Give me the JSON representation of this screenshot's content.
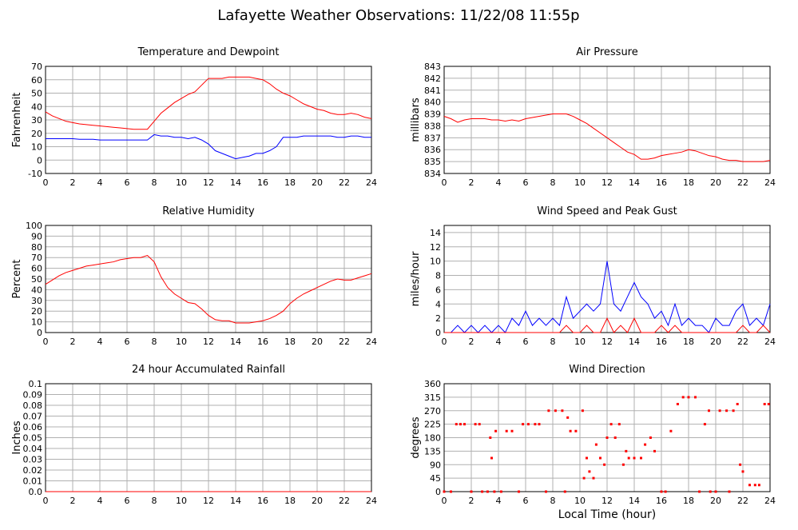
{
  "title": "Lafayette Weather Observations: 11/22/08 11:55p",
  "xlabel": "Local Time (hour)",
  "chart_data": [
    {
      "type": "line",
      "title": "Temperature and Dewpoint",
      "ylabel": "Fahrenheit",
      "x": [
        0,
        0.5,
        1,
        1.5,
        2,
        2.5,
        3,
        3.5,
        4,
        4.5,
        5,
        5.5,
        6,
        6.5,
        7,
        7.5,
        8,
        8.5,
        9,
        9.5,
        10,
        10.5,
        11,
        11.5,
        12,
        12.5,
        13,
        13.5,
        14,
        14.5,
        15,
        15.5,
        16,
        16.5,
        17,
        17.5,
        18,
        18.5,
        19,
        19.5,
        20,
        20.5,
        21,
        21.5,
        22,
        22.5,
        23,
        23.5,
        24
      ],
      "series": [
        {
          "color": "#ff0000",
          "values": [
            36,
            33,
            31,
            29,
            28,
            27,
            26.5,
            26,
            25.5,
            25,
            24.5,
            24,
            23.5,
            23,
            23,
            23,
            29,
            35,
            39,
            43,
            46,
            49,
            51,
            56,
            61,
            61,
            61,
            62,
            62,
            62,
            62,
            61,
            60,
            57,
            53,
            50,
            48,
            45,
            42,
            40,
            38,
            37,
            35,
            34,
            34,
            35,
            34,
            32,
            31
          ]
        },
        {
          "color": "#0000ff",
          "values": [
            16,
            16,
            16,
            16,
            16,
            15.5,
            15.5,
            15.5,
            15,
            15,
            15,
            15,
            15,
            15,
            15,
            15,
            19,
            18,
            18,
            17,
            17,
            16,
            17,
            15,
            12,
            7,
            5,
            3,
            1,
            2,
            3,
            5,
            5,
            7,
            10,
            17,
            17,
            17,
            18,
            18,
            18,
            18,
            18,
            17,
            17,
            18,
            18,
            17,
            17
          ]
        }
      ],
      "xlim": [
        0,
        24
      ],
      "xticks": [
        0,
        2,
        4,
        6,
        8,
        10,
        12,
        14,
        16,
        18,
        20,
        22,
        24
      ],
      "ylim": [
        -10,
        70
      ],
      "yticks": [
        -10,
        0,
        10,
        20,
        30,
        40,
        50,
        60,
        70
      ],
      "grid": true
    },
    {
      "type": "line",
      "title": "Air Pressure",
      "ylabel": "millibars",
      "x": [
        0,
        0.5,
        1,
        1.5,
        2,
        2.5,
        3,
        3.5,
        4,
        4.5,
        5,
        5.5,
        6,
        6.5,
        7,
        7.5,
        8,
        8.5,
        9,
        9.5,
        10,
        10.5,
        11,
        11.5,
        12,
        12.5,
        13,
        13.5,
        14,
        14.5,
        15,
        15.5,
        16,
        16.5,
        17,
        17.5,
        18,
        18.5,
        19,
        19.5,
        20,
        20.5,
        21,
        21.5,
        22,
        22.5,
        23,
        23.5,
        24
      ],
      "series": [
        {
          "color": "#ff0000",
          "values": [
            838.8,
            838.6,
            838.3,
            838.5,
            838.6,
            838.6,
            838.6,
            838.5,
            838.5,
            838.4,
            838.5,
            838.4,
            838.6,
            838.7,
            838.8,
            838.9,
            839,
            839,
            839,
            838.8,
            838.5,
            838.2,
            837.8,
            837.4,
            837,
            836.6,
            836.2,
            835.8,
            835.6,
            835.2,
            835.2,
            835.3,
            835.5,
            835.6,
            835.7,
            835.8,
            836,
            835.9,
            835.7,
            835.5,
            835.4,
            835.2,
            835.1,
            835.1,
            835,
            835,
            835,
            835,
            835.1
          ]
        }
      ],
      "xlim": [
        0,
        24
      ],
      "xticks": [
        0,
        2,
        4,
        6,
        8,
        10,
        12,
        14,
        16,
        18,
        20,
        22,
        24
      ],
      "ylim": [
        834,
        843
      ],
      "yticks": [
        834,
        835,
        836,
        837,
        838,
        839,
        840,
        841,
        842,
        843
      ],
      "grid": true
    },
    {
      "type": "line",
      "title": "Relative Humidity",
      "ylabel": "Percent",
      "x": [
        0,
        0.5,
        1,
        1.5,
        2,
        2.5,
        3,
        3.5,
        4,
        4.5,
        5,
        5.5,
        6,
        6.5,
        7,
        7.5,
        8,
        8.5,
        9,
        9.5,
        10,
        10.5,
        11,
        11.5,
        12,
        12.5,
        13,
        13.5,
        14,
        14.5,
        15,
        15.5,
        16,
        16.5,
        17,
        17.5,
        18,
        18.5,
        19,
        19.5,
        20,
        20.5,
        21,
        21.5,
        22,
        22.5,
        23,
        23.5,
        24
      ],
      "series": [
        {
          "color": "#ff0000",
          "values": [
            45,
            49,
            53,
            56,
            58,
            60,
            62,
            63,
            64,
            65,
            66,
            68,
            69,
            70,
            70,
            72,
            66,
            52,
            42,
            36,
            32,
            28,
            27,
            22,
            16,
            12,
            11,
            11,
            9,
            9,
            9,
            10,
            11,
            13,
            16,
            20,
            27,
            32,
            36,
            39,
            42,
            45,
            48,
            50,
            49,
            49,
            51,
            53,
            55
          ]
        }
      ],
      "xlim": [
        0,
        24
      ],
      "xticks": [
        0,
        2,
        4,
        6,
        8,
        10,
        12,
        14,
        16,
        18,
        20,
        22,
        24
      ],
      "ylim": [
        0,
        100
      ],
      "yticks": [
        0,
        10,
        20,
        30,
        40,
        50,
        60,
        70,
        80,
        90,
        100
      ],
      "grid": true
    },
    {
      "type": "line",
      "title": "Wind Speed and Peak Gust",
      "ylabel": "miles/hour",
      "x": [
        0,
        0.5,
        1,
        1.5,
        2,
        2.5,
        3,
        3.5,
        4,
        4.5,
        5,
        5.5,
        6,
        6.5,
        7,
        7.5,
        8,
        8.5,
        9,
        9.5,
        10,
        10.5,
        11,
        11.5,
        12,
        12.5,
        13,
        13.5,
        14,
        14.5,
        15,
        15.5,
        16,
        16.5,
        17,
        17.5,
        18,
        18.5,
        19,
        19.5,
        20,
        20.5,
        21,
        21.5,
        22,
        22.5,
        23,
        23.5,
        24
      ],
      "series": [
        {
          "color": "#0000ff",
          "values": [
            0,
            0,
            1,
            0,
            1,
            0,
            1,
            0,
            1,
            0,
            2,
            1,
            3,
            1,
            2,
            1,
            2,
            1,
            5,
            2,
            3,
            4,
            3,
            4,
            10,
            4,
            3,
            5,
            7,
            5,
            4,
            2,
            3,
            1,
            4,
            1,
            2,
            1,
            1,
            0,
            2,
            1,
            1,
            3,
            4,
            1,
            2,
            1,
            4
          ]
        },
        {
          "color": "#ff0000",
          "values": [
            0,
            0,
            0,
            0,
            0,
            0,
            0,
            0,
            0,
            0,
            0,
            0,
            0,
            0,
            0,
            0,
            0,
            0,
            1,
            0,
            0,
            1,
            0,
            0,
            2,
            0,
            1,
            0,
            2,
            0,
            0,
            0,
            1,
            0,
            1,
            0,
            0,
            0,
            0,
            0,
            0,
            0,
            0,
            0,
            1,
            0,
            0,
            1,
            0
          ]
        }
      ],
      "xlim": [
        0,
        24
      ],
      "xticks": [
        0,
        2,
        4,
        6,
        8,
        10,
        12,
        14,
        16,
        18,
        20,
        22,
        24
      ],
      "ylim": [
        0,
        15
      ],
      "yticks": [
        0,
        2,
        4,
        6,
        8,
        10,
        12,
        14
      ],
      "grid": true
    },
    {
      "type": "line",
      "title": "24 hour Accumulated Rainfall",
      "ylabel": "Inches",
      "x": [
        0,
        24
      ],
      "series": [
        {
          "color": "#ff0000",
          "values": [
            0,
            0
          ]
        }
      ],
      "xlim": [
        0,
        24
      ],
      "xticks": [
        0,
        2,
        4,
        6,
        8,
        10,
        12,
        14,
        16,
        18,
        20,
        22,
        24
      ],
      "ylim": [
        0,
        0.1
      ],
      "yticks": [
        {
          "value": 0,
          "label": "0.0"
        },
        0.01,
        0.02,
        0.03,
        0.04,
        0.05,
        0.06,
        0.07,
        0.08,
        0.09,
        0.1
      ],
      "grid": true
    },
    {
      "type": "scatter",
      "title": "Wind Direction",
      "ylabel": "degrees",
      "x": [
        0,
        0.5,
        0.9,
        1.2,
        1.5,
        2,
        2.3,
        2.6,
        2.8,
        3.2,
        3.4,
        3.5,
        3.7,
        3.8,
        4.2,
        4.6,
        5,
        5.5,
        5.8,
        6.2,
        6.7,
        7,
        7.5,
        7.7,
        8.2,
        8.7,
        8.9,
        9.1,
        9.3,
        9.7,
        10.2,
        10.3,
        10.5,
        10.7,
        11,
        11.2,
        11.5,
        11.8,
        12,
        12.3,
        12.6,
        12.9,
        13.2,
        13.4,
        13.6,
        14,
        14.5,
        14.8,
        15.2,
        15.5,
        16,
        16.3,
        16.7,
        17.2,
        17.6,
        18,
        18.5,
        18.8,
        19.2,
        19.5,
        19.6,
        20,
        20.3,
        20.8,
        21,
        21.3,
        21.6,
        21.8,
        22,
        22.5,
        22.9,
        23.2,
        23.6,
        23.9
      ],
      "series": [
        {
          "color": "#ff0000",
          "values": [
            0,
            0,
            225,
            225,
            225,
            0,
            225,
            225,
            0,
            0,
            180,
            112,
            0,
            202,
            0,
            202,
            202,
            0,
            225,
            225,
            225,
            225,
            0,
            270,
            270,
            270,
            0,
            247,
            202,
            202,
            270,
            45,
            112,
            67,
            45,
            157,
            112,
            90,
            180,
            225,
            180,
            225,
            90,
            135,
            112,
            112,
            112,
            157,
            180,
            135,
            0,
            0,
            202,
            292,
            315,
            315,
            315,
            0,
            225,
            270,
            0,
            0,
            270,
            270,
            0,
            270,
            292,
            90,
            67,
            22,
            22,
            22,
            292,
            292
          ]
        }
      ],
      "xlim": [
        0,
        24
      ],
      "xticks": [
        0,
        2,
        4,
        6,
        8,
        10,
        12,
        14,
        16,
        18,
        20,
        22,
        24
      ],
      "ylim": [
        0,
        360
      ],
      "yticks": [
        0,
        45,
        90,
        135,
        180,
        225,
        270,
        315,
        360
      ],
      "grid": true
    }
  ]
}
